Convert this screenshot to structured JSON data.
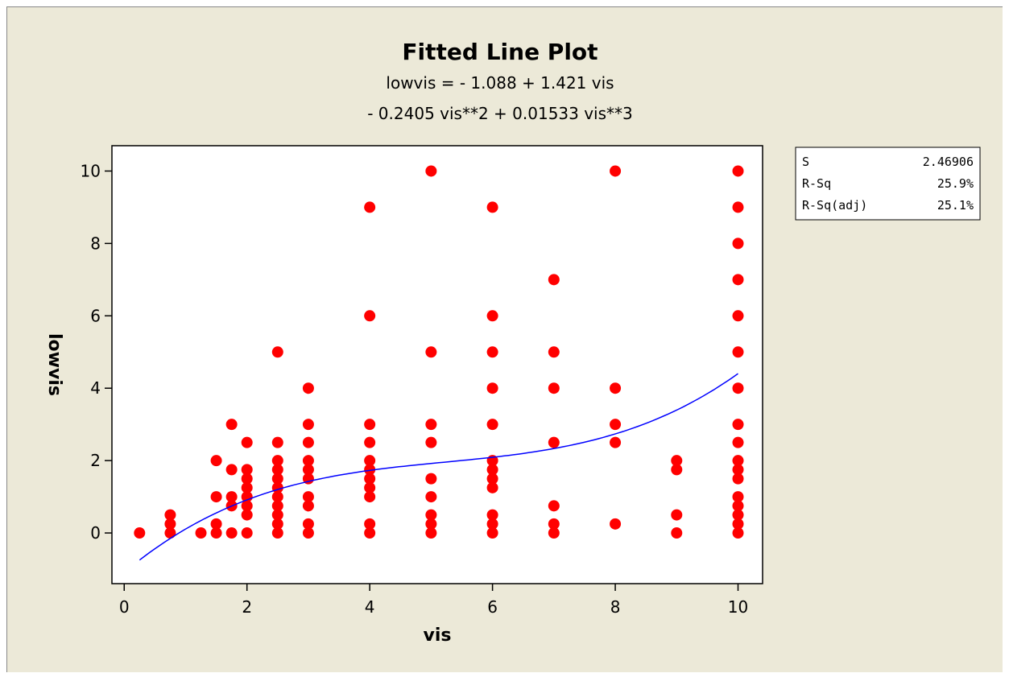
{
  "chart_data": {
    "type": "scatter",
    "title": "Fitted Line Plot",
    "subtitle_lines": [
      "lowvis =  - 1.088 + 1.421 vis",
      "- 0.2405 vis**2 + 0.01533 vis**3"
    ],
    "xlabel": "vis",
    "ylabel": "lowvis",
    "xlim": [
      -0.2,
      10.4
    ],
    "ylim": [
      -1.4,
      10.7
    ],
    "xticks": [
      0,
      2,
      4,
      6,
      8,
      10
    ],
    "yticks": [
      0,
      2,
      4,
      6,
      8,
      10
    ],
    "grid": false,
    "point_color": "#ff0000",
    "line_color": "#0000ff",
    "fit": {
      "model": "cubic",
      "coefficients": [
        -1.088,
        1.421,
        -0.2405,
        0.01533
      ],
      "x_range": [
        0.25,
        10
      ]
    },
    "points": [
      [
        0.25,
        0
      ],
      [
        0.75,
        0
      ],
      [
        0.75,
        0.25
      ],
      [
        0.75,
        0.5
      ],
      [
        1.25,
        0
      ],
      [
        1.5,
        0
      ],
      [
        1.5,
        0.25
      ],
      [
        1.5,
        1
      ],
      [
        1.5,
        2
      ],
      [
        1.75,
        0
      ],
      [
        1.75,
        0.75
      ],
      [
        1.75,
        1
      ],
      [
        1.75,
        1.75
      ],
      [
        1.75,
        3
      ],
      [
        2,
        0
      ],
      [
        2,
        0.5
      ],
      [
        2,
        0.75
      ],
      [
        2,
        1
      ],
      [
        2,
        1.25
      ],
      [
        2,
        1.5
      ],
      [
        2,
        1.75
      ],
      [
        2,
        2.5
      ],
      [
        2.5,
        0
      ],
      [
        2.5,
        0.25
      ],
      [
        2.5,
        0.5
      ],
      [
        2.5,
        0.75
      ],
      [
        2.5,
        1
      ],
      [
        2.5,
        1.25
      ],
      [
        2.5,
        1.5
      ],
      [
        2.5,
        1.75
      ],
      [
        2.5,
        2
      ],
      [
        2.5,
        2.5
      ],
      [
        2.5,
        5
      ],
      [
        3,
        0
      ],
      [
        3,
        0.25
      ],
      [
        3,
        0.75
      ],
      [
        3,
        1
      ],
      [
        3,
        1.5
      ],
      [
        3,
        1.75
      ],
      [
        3,
        2
      ],
      [
        3,
        2.5
      ],
      [
        3,
        3
      ],
      [
        3,
        4
      ],
      [
        4,
        0
      ],
      [
        4,
        0.25
      ],
      [
        4,
        1
      ],
      [
        4,
        1.25
      ],
      [
        4,
        1.5
      ],
      [
        4,
        1.75
      ],
      [
        4,
        2
      ],
      [
        4,
        2.5
      ],
      [
        4,
        3
      ],
      [
        4,
        6
      ],
      [
        4,
        9
      ],
      [
        5,
        0
      ],
      [
        5,
        0.25
      ],
      [
        5,
        0.5
      ],
      [
        5,
        1
      ],
      [
        5,
        1.5
      ],
      [
        5,
        2.5
      ],
      [
        5,
        3
      ],
      [
        5,
        5
      ],
      [
        5,
        10
      ],
      [
        6,
        0
      ],
      [
        6,
        0.25
      ],
      [
        6,
        0.5
      ],
      [
        6,
        1.25
      ],
      [
        6,
        1.5
      ],
      [
        6,
        1.75
      ],
      [
        6,
        2
      ],
      [
        6,
        3
      ],
      [
        6,
        4
      ],
      [
        6,
        5
      ],
      [
        6,
        6
      ],
      [
        6,
        9
      ],
      [
        7,
        0
      ],
      [
        7,
        0.25
      ],
      [
        7,
        0.75
      ],
      [
        7,
        2.5
      ],
      [
        7,
        4
      ],
      [
        7,
        5
      ],
      [
        7,
        7
      ],
      [
        8,
        0.25
      ],
      [
        8,
        2.5
      ],
      [
        8,
        3
      ],
      [
        8,
        4
      ],
      [
        8,
        10
      ],
      [
        9,
        0
      ],
      [
        9,
        0.5
      ],
      [
        9,
        1.75
      ],
      [
        9,
        2
      ],
      [
        10,
        0
      ],
      [
        10,
        0.25
      ],
      [
        10,
        0.5
      ],
      [
        10,
        0.75
      ],
      [
        10,
        1
      ],
      [
        10,
        1.5
      ],
      [
        10,
        1.75
      ],
      [
        10,
        2
      ],
      [
        10,
        2.5
      ],
      [
        10,
        3
      ],
      [
        10,
        4
      ],
      [
        10,
        5
      ],
      [
        10,
        6
      ],
      [
        10,
        7
      ],
      [
        10,
        8
      ],
      [
        10,
        9
      ],
      [
        10,
        10
      ]
    ],
    "stats": [
      {
        "label": "S",
        "value": "2.46906"
      },
      {
        "label": "R-Sq",
        "value": "25.9%"
      },
      {
        "label": "R-Sq(adj)",
        "value": "25.1%"
      }
    ]
  },
  "colors": {
    "background": "#ece9d8",
    "plot_area": "#ffffff"
  }
}
